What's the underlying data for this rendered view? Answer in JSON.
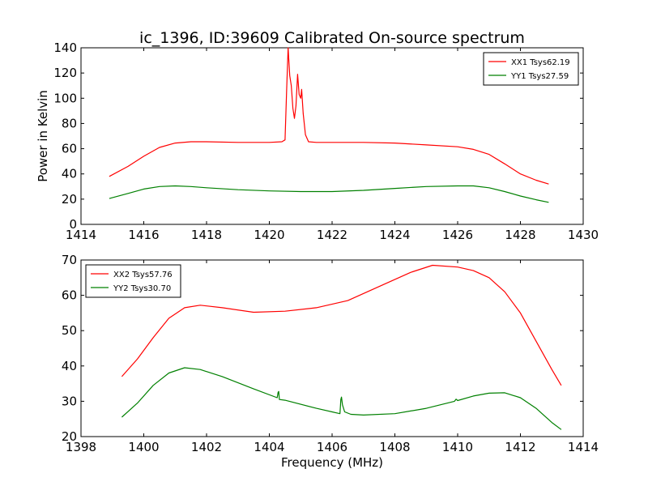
{
  "chart_data": [
    {
      "type": "line",
      "title": "ic_1396, ID:39609 Calibrated On-source spectrum",
      "xlabel": "",
      "ylabel": "Power in Kelvin",
      "xlim": [
        1414,
        1430
      ],
      "ylim": [
        0,
        140
      ],
      "xticks": [
        1414,
        1416,
        1418,
        1420,
        1422,
        1424,
        1426,
        1428,
        1430
      ],
      "yticks": [
        0,
        20,
        40,
        60,
        80,
        100,
        120,
        140
      ],
      "legend_position": "top-right",
      "series": [
        {
          "name": "XX1 Tsys62.19",
          "color": "#ff0000",
          "points": [
            [
              1414.9,
              38
            ],
            [
              1415.5,
              46
            ],
            [
              1416,
              54
            ],
            [
              1416.5,
              61
            ],
            [
              1417,
              64.5
            ],
            [
              1417.5,
              65.5
            ],
            [
              1418,
              65.5
            ],
            [
              1419,
              65
            ],
            [
              1420,
              65
            ],
            [
              1420.4,
              65.5
            ],
            [
              1420.5,
              67
            ],
            [
              1420.55,
              105
            ],
            [
              1420.6,
              140
            ],
            [
              1420.65,
              118
            ],
            [
              1420.7,
              110
            ],
            [
              1420.75,
              92
            ],
            [
              1420.8,
              84
            ],
            [
              1420.85,
              94
            ],
            [
              1420.9,
              119
            ],
            [
              1420.95,
              103
            ],
            [
              1421,
              100
            ],
            [
              1421.03,
              107
            ],
            [
              1421.08,
              88
            ],
            [
              1421.15,
              71
            ],
            [
              1421.25,
              65.5
            ],
            [
              1421.5,
              65
            ],
            [
              1422,
              65
            ],
            [
              1423,
              65
            ],
            [
              1424,
              64.5
            ],
            [
              1425,
              63
            ],
            [
              1426,
              61.5
            ],
            [
              1426.5,
              59.5
            ],
            [
              1427,
              55.5
            ],
            [
              1427.5,
              48
            ],
            [
              1428,
              40
            ],
            [
              1428.5,
              35
            ],
            [
              1428.9,
              32
            ]
          ]
        },
        {
          "name": "YY1 Tsys27.59",
          "color": "#008000",
          "points": [
            [
              1414.9,
              20.5
            ],
            [
              1415.5,
              24.5
            ],
            [
              1416,
              28
            ],
            [
              1416.5,
              30
            ],
            [
              1417,
              30.5
            ],
            [
              1417.5,
              30
            ],
            [
              1418,
              29
            ],
            [
              1419,
              27.5
            ],
            [
              1420,
              26.5
            ],
            [
              1421,
              26
            ],
            [
              1422,
              26
            ],
            [
              1423,
              27
            ],
            [
              1424,
              28.5
            ],
            [
              1425,
              30
            ],
            [
              1426,
              30.5
            ],
            [
              1426.5,
              30.5
            ],
            [
              1427,
              29
            ],
            [
              1427.5,
              26
            ],
            [
              1428,
              22.5
            ],
            [
              1428.5,
              19.5
            ],
            [
              1428.9,
              17.5
            ]
          ]
        }
      ]
    },
    {
      "type": "line",
      "title": "",
      "xlabel": "Frequency (MHz)",
      "ylabel": "",
      "xlim": [
        1398,
        1414
      ],
      "ylim": [
        20,
        70
      ],
      "xticks": [
        1398,
        1400,
        1402,
        1404,
        1406,
        1408,
        1410,
        1412,
        1414
      ],
      "yticks": [
        20,
        30,
        40,
        50,
        60,
        70
      ],
      "legend_position": "top-left",
      "series": [
        {
          "name": "XX2 Tsys57.76",
          "color": "#ff0000",
          "points": [
            [
              1399.3,
              37
            ],
            [
              1399.8,
              42
            ],
            [
              1400.3,
              48
            ],
            [
              1400.8,
              53.5
            ],
            [
              1401.3,
              56.5
            ],
            [
              1401.8,
              57.2
            ],
            [
              1402.5,
              56.5
            ],
            [
              1403.5,
              55.2
            ],
            [
              1404.5,
              55.5
            ],
            [
              1405.5,
              56.5
            ],
            [
              1406.5,
              58.5
            ],
            [
              1407.5,
              62.5
            ],
            [
              1408.5,
              66.5
            ],
            [
              1409.2,
              68.5
            ],
            [
              1410,
              68
            ],
            [
              1410.5,
              67
            ],
            [
              1411,
              65
            ],
            [
              1411.5,
              61
            ],
            [
              1412,
              55
            ],
            [
              1412.5,
              47
            ],
            [
              1413,
              39
            ],
            [
              1413.3,
              34.5
            ]
          ]
        },
        {
          "name": "YY2 Tsys30.70",
          "color": "#008000",
          "points": [
            [
              1399.3,
              25.5
            ],
            [
              1399.8,
              29.5
            ],
            [
              1400.3,
              34.5
            ],
            [
              1400.8,
              38
            ],
            [
              1401.3,
              39.5
            ],
            [
              1401.8,
              39
            ],
            [
              1402.5,
              37
            ],
            [
              1403.5,
              33.5
            ],
            [
              1404.25,
              31
            ],
            [
              1404.28,
              32.5
            ],
            [
              1404.3,
              32.8
            ],
            [
              1404.32,
              30.5
            ],
            [
              1404.5,
              30.3
            ],
            [
              1405.5,
              28
            ],
            [
              1406,
              27
            ],
            [
              1406.25,
              26.5
            ],
            [
              1406.28,
              30.5
            ],
            [
              1406.3,
              31.2
            ],
            [
              1406.33,
              29
            ],
            [
              1406.4,
              27
            ],
            [
              1406.6,
              26.3
            ],
            [
              1407,
              26.1
            ],
            [
              1408,
              26.5
            ],
            [
              1409,
              28
            ],
            [
              1409.9,
              30
            ],
            [
              1409.95,
              30.6
            ],
            [
              1410.0,
              30.2
            ],
            [
              1410.5,
              31.5
            ],
            [
              1411,
              32.3
            ],
            [
              1411.5,
              32.4
            ],
            [
              1412,
              31
            ],
            [
              1412.5,
              28
            ],
            [
              1413,
              24
            ],
            [
              1413.3,
              22
            ]
          ]
        }
      ]
    }
  ]
}
